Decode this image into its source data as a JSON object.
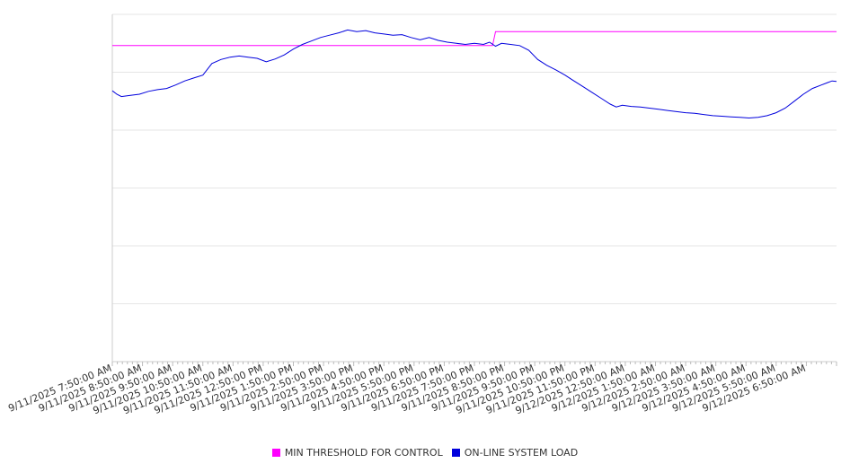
{
  "chart_data": {
    "type": "line",
    "title": "",
    "xlabel": "",
    "ylabel": "",
    "y_tick_labels_visible": false,
    "grid": true,
    "legend_position": "bottom-center",
    "x_tick_labels": [
      "9/11/2025 7:50:00 AM",
      "9/11/2025 8:50:00 AM",
      "9/11/2025 9:50:00 AM",
      "9/11/2025 10:50:00 AM",
      "9/11/2025 11:50:00 AM",
      "9/11/2025 12:50:00 PM",
      "9/11/2025 1:50:00 PM",
      "9/11/2025 2:50:00 PM",
      "9/11/2025 3:50:00 PM",
      "9/11/2025 4:50:00 PM",
      "9/11/2025 5:50:00 PM",
      "9/11/2025 6:50:00 PM",
      "9/11/2025 7:50:00 PM",
      "9/11/2025 8:50:00 PM",
      "9/11/2025 9:50:00 PM",
      "9/11/2025 10:50:00 PM",
      "9/11/2025 11:50:00 PM",
      "9/12/2025 12:50:00 AM",
      "9/12/2025 1:50:00 AM",
      "9/12/2025 2:50:00 AM",
      "9/12/2025 3:50:00 AM",
      "9/12/2025 4:50:00 AM",
      "9/12/2025 5:50:00 AM",
      "9/12/2025 6:50:00 AM"
    ],
    "x_hours_range": [
      0,
      24
    ],
    "ylim": [
      0,
      6
    ],
    "series": [
      {
        "name": "MIN THRESHOLD FOR CONTROL",
        "color": "#ff00ff",
        "points": [
          [
            0,
            5.46
          ],
          [
            12.6,
            5.46
          ],
          [
            12.7,
            5.7
          ],
          [
            24,
            5.7
          ]
        ]
      },
      {
        "name": "ON-LINE SYSTEM LOAD",
        "color": "#0000dd",
        "points": [
          [
            0,
            4.68
          ],
          [
            0.15,
            4.62
          ],
          [
            0.3,
            4.58
          ],
          [
            0.6,
            4.6
          ],
          [
            0.9,
            4.62
          ],
          [
            1.2,
            4.67
          ],
          [
            1.5,
            4.7
          ],
          [
            1.8,
            4.72
          ],
          [
            2.1,
            4.78
          ],
          [
            2.4,
            4.85
          ],
          [
            2.7,
            4.9
          ],
          [
            3.0,
            4.95
          ],
          [
            3.3,
            5.15
          ],
          [
            3.6,
            5.22
          ],
          [
            3.9,
            5.26
          ],
          [
            4.2,
            5.28
          ],
          [
            4.5,
            5.26
          ],
          [
            4.8,
            5.24
          ],
          [
            5.1,
            5.18
          ],
          [
            5.4,
            5.23
          ],
          [
            5.7,
            5.3
          ],
          [
            6.0,
            5.4
          ],
          [
            6.3,
            5.48
          ],
          [
            6.6,
            5.54
          ],
          [
            6.9,
            5.6
          ],
          [
            7.2,
            5.64
          ],
          [
            7.5,
            5.68
          ],
          [
            7.8,
            5.73
          ],
          [
            8.1,
            5.7
          ],
          [
            8.4,
            5.72
          ],
          [
            8.7,
            5.68
          ],
          [
            9.0,
            5.66
          ],
          [
            9.3,
            5.64
          ],
          [
            9.6,
            5.65
          ],
          [
            9.9,
            5.6
          ],
          [
            10.2,
            5.56
          ],
          [
            10.5,
            5.6
          ],
          [
            10.8,
            5.55
          ],
          [
            11.1,
            5.52
          ],
          [
            11.4,
            5.5
          ],
          [
            11.7,
            5.48
          ],
          [
            12.0,
            5.5
          ],
          [
            12.3,
            5.48
          ],
          [
            12.5,
            5.52
          ],
          [
            12.7,
            5.45
          ],
          [
            12.9,
            5.5
          ],
          [
            13.2,
            5.48
          ],
          [
            13.5,
            5.46
          ],
          [
            13.8,
            5.38
          ],
          [
            14.1,
            5.22
          ],
          [
            14.4,
            5.12
          ],
          [
            14.7,
            5.04
          ],
          [
            15.0,
            4.95
          ],
          [
            15.3,
            4.85
          ],
          [
            15.6,
            4.75
          ],
          [
            15.9,
            4.65
          ],
          [
            16.2,
            4.55
          ],
          [
            16.5,
            4.45
          ],
          [
            16.7,
            4.4
          ],
          [
            16.9,
            4.43
          ],
          [
            17.2,
            4.41
          ],
          [
            17.5,
            4.4
          ],
          [
            17.8,
            4.38
          ],
          [
            18.1,
            4.36
          ],
          [
            18.4,
            4.34
          ],
          [
            18.7,
            4.32
          ],
          [
            19.0,
            4.3
          ],
          [
            19.3,
            4.29
          ],
          [
            19.6,
            4.27
          ],
          [
            19.9,
            4.25
          ],
          [
            20.2,
            4.24
          ],
          [
            20.5,
            4.23
          ],
          [
            20.8,
            4.22
          ],
          [
            21.1,
            4.21
          ],
          [
            21.4,
            4.22
          ],
          [
            21.7,
            4.25
          ],
          [
            22.0,
            4.3
          ],
          [
            22.3,
            4.38
          ],
          [
            22.6,
            4.5
          ],
          [
            22.9,
            4.62
          ],
          [
            23.2,
            4.72
          ],
          [
            23.5,
            4.78
          ],
          [
            23.7,
            4.82
          ],
          [
            23.85,
            4.85
          ],
          [
            24.0,
            4.84
          ]
        ]
      }
    ]
  }
}
